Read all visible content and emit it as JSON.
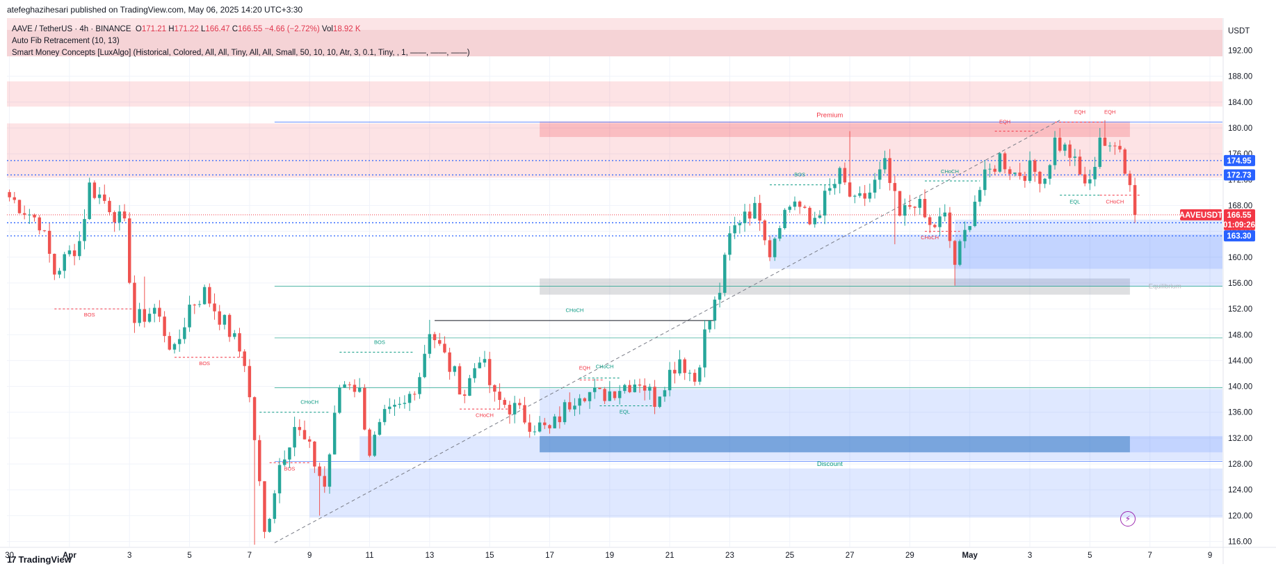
{
  "publisher_line": "atefeghazihesari published on TradingView.com, May 06, 2025 14:20 UTC+3:30",
  "legend": {
    "symbol": "AAVE / TetherUS · 4h · BINANCE",
    "o_label": "O",
    "o_value": "171.21",
    "h_label": "H",
    "h_value": "171.22",
    "l_label": "L",
    "l_value": "166.47",
    "c_label": "C",
    "c_value": "166.55",
    "change": "−4.66 (−2.72%)",
    "vol_label": "Vol",
    "vol_value": "18.92 K",
    "indicator1": "Auto Fib Retracement (10, 13)",
    "indicator2": "Smart Money Concepts [LuxAlgo] (Historical, Colored, All, All, Tiny, All, All, Small, 50, 10, 10, Atr, 3, 0.1, Tiny, , 1, ——, ——, ——)"
  },
  "footer": {
    "logo_glyph": "17",
    "logo_text": "TradingView"
  },
  "icons": {
    "bolt": "lightning-bolt-icon"
  },
  "colors": {
    "up": "#26a69a",
    "down": "#ef5350",
    "axis_text": "#131722",
    "blue_tag": "#2962ff",
    "red_tag": "#f23645"
  },
  "chart_data": {
    "type": "candlestick",
    "symbol": "AAVEUSDT",
    "currency": "USDT",
    "y_ticks": [
      116,
      120,
      124,
      128,
      132,
      136,
      140,
      144,
      148,
      152,
      156,
      160,
      164,
      168,
      172,
      176,
      180,
      184,
      188,
      192
    ],
    "y_tick_labels": [
      "116.00",
      "120.00",
      "124.00",
      "128.00",
      "132.00",
      "136.00",
      "140.00",
      "144.00",
      "148.00",
      "152.00",
      "156.00",
      "160.00",
      "164.00",
      "168.00",
      "172.00",
      "176.00",
      "180.00",
      "184.00",
      "188.00",
      "192.00"
    ],
    "ylim": [
      115.2,
      197.0
    ],
    "x_tick_labels": [
      {
        "t": 0,
        "label": "30"
      },
      {
        "t": 12,
        "label": "Apr"
      },
      {
        "t": 24,
        "label": "3"
      },
      {
        "t": 36,
        "label": "5"
      },
      {
        "t": 48,
        "label": "7"
      },
      {
        "t": 60,
        "label": "9"
      },
      {
        "t": 72,
        "label": "11"
      },
      {
        "t": 84,
        "label": "13"
      },
      {
        "t": 96,
        "label": "15"
      },
      {
        "t": 108,
        "label": "17"
      },
      {
        "t": 120,
        "label": "19"
      },
      {
        "t": 132,
        "label": "21"
      },
      {
        "t": 144,
        "label": "23"
      },
      {
        "t": 156,
        "label": "25"
      },
      {
        "t": 168,
        "label": "27"
      },
      {
        "t": 180,
        "label": "29"
      },
      {
        "t": 192,
        "label": "May"
      },
      {
        "t": 204,
        "label": "3"
      },
      {
        "t": 216,
        "label": "5"
      },
      {
        "t": 228,
        "label": "7"
      },
      {
        "t": 240,
        "label": "9"
      }
    ],
    "xlim": [
      -0.5,
      242.5
    ],
    "price_tags": [
      {
        "value": 174.95,
        "label": "174.95",
        "color": "#2962ff"
      },
      {
        "value": 172.73,
        "label": "172.73",
        "color": "#2962ff"
      },
      {
        "value": 165.32,
        "label": "165.32",
        "color": "#2962ff"
      },
      {
        "value": 163.3,
        "label": "163.30",
        "color": "#2962ff"
      }
    ],
    "last_price": {
      "value": 166.55,
      "label": "166.55",
      "symbol_label": "AAVEUSDT",
      "countdown": "01:09:26",
      "color": "#f23645"
    },
    "fib_lines": [
      180.9,
      155.5,
      147.5,
      139.8,
      128.4
    ],
    "fib_labels": [
      {
        "t": 164,
        "y": 182.0,
        "text": "Premium",
        "color": "#f23645"
      },
      {
        "t": 231,
        "y": 155.5,
        "text": "Equilibrium",
        "color": "#b2b5be"
      },
      {
        "t": 164,
        "y": 128.0,
        "text": "Discount",
        "color": "#089981"
      }
    ],
    "zones": [
      {
        "t0": -0.5,
        "t1": 242.5,
        "y0": 183.3,
        "y1": 187.2,
        "kind": "supply"
      },
      {
        "t0": -0.5,
        "t1": 242.5,
        "y0": 172.3,
        "y1": 180.7,
        "kind": "supply"
      },
      {
        "t0": 106,
        "t1": 224,
        "y0": 178.6,
        "y1": 181.0,
        "kind": "supply-strong"
      },
      {
        "t0": 106,
        "t1": 224,
        "y0": 154.2,
        "y1": 156.7,
        "kind": "equilibrium"
      },
      {
        "t0": 152,
        "t1": 242.5,
        "y0": 158.2,
        "y1": 163.5,
        "kind": "demand"
      },
      {
        "t0": 189,
        "t1": 242.5,
        "y0": 155.5,
        "y1": 165.8,
        "kind": "demand"
      },
      {
        "t0": 106,
        "t1": 242.5,
        "y0": 129.8,
        "y1": 139.6,
        "kind": "demand"
      },
      {
        "t0": 106,
        "t1": 224,
        "y0": 129.8,
        "y1": 132.3,
        "kind": "demand-strong"
      },
      {
        "t0": 70,
        "t1": 242.5,
        "y0": 128.5,
        "y1": 132.3,
        "kind": "demand"
      },
      {
        "t0": 60,
        "t1": 242.5,
        "y0": 119.7,
        "y1": 127.3,
        "kind": "demand"
      }
    ],
    "trend_line": {
      "t0": 53,
      "y0": 115.8,
      "t1": 210,
      "y1": 181.2
    },
    "structure_lines": [
      {
        "t0": 9,
        "t1": 25,
        "y": 152.0,
        "color": "#f23645",
        "dashed": true
      },
      {
        "t0": 33,
        "t1": 47,
        "y": 144.5,
        "color": "#f23645",
        "dashed": true
      },
      {
        "t0": 50,
        "t1": 64,
        "y": 136.0,
        "color": "#089981",
        "dashed": true
      },
      {
        "t0": 52,
        "t1": 60,
        "y": 128.2,
        "color": "#f23645",
        "dashed": true
      },
      {
        "t0": 66,
        "t1": 81,
        "y": 145.3,
        "color": "#089981",
        "dashed": true
      },
      {
        "t0": 85,
        "t1": 141,
        "y": 150.2,
        "color": "#131722",
        "dashed": false
      },
      {
        "t0": 90,
        "t1": 100,
        "y": 136.5,
        "color": "#f23645",
        "dashed": true
      },
      {
        "t0": 114,
        "t1": 122,
        "y": 141.3,
        "color": "#089981",
        "dashed": true
      },
      {
        "t0": 114,
        "t1": 119,
        "y": 141.0,
        "color": "#f23645",
        "dashed": true
      },
      {
        "t0": 118,
        "t1": 129,
        "y": 137.0,
        "color": "#089981",
        "dashed": true
      },
      {
        "t0": 152,
        "t1": 165,
        "y": 171.2,
        "color": "#089981",
        "dashed": true
      },
      {
        "t0": 183,
        "t1": 194,
        "y": 171.8,
        "color": "#089981",
        "dashed": true
      },
      {
        "t0": 183,
        "t1": 190,
        "y": 164.0,
        "color": "#f23645",
        "dashed": true
      },
      {
        "t0": 197,
        "t1": 205,
        "y": 179.5,
        "color": "#f23645",
        "dashed": true
      },
      {
        "t0": 209,
        "t1": 219,
        "y": 180.9,
        "color": "#f23645",
        "dashed": true
      },
      {
        "t0": 210,
        "t1": 218,
        "y": 169.6,
        "color": "#089981",
        "dashed": true
      },
      {
        "t0": 218,
        "t1": 226,
        "y": 169.6,
        "color": "#f23645",
        "dashed": true
      }
    ],
    "structure_labels": [
      {
        "t": 16,
        "y": 150.8,
        "text": "BOS",
        "color": "#f23645"
      },
      {
        "t": 39,
        "y": 143.3,
        "text": "BOS",
        "color": "#f23645"
      },
      {
        "t": 60,
        "y": 137.3,
        "text": "CHoCH",
        "color": "#089981"
      },
      {
        "t": 56,
        "y": 127.0,
        "text": "BOS",
        "color": "#f23645"
      },
      {
        "t": 74,
        "y": 146.6,
        "text": "BOS",
        "color": "#089981"
      },
      {
        "t": 113,
        "y": 151.5,
        "text": "CHoCH",
        "color": "#089981",
        "big": true
      },
      {
        "t": 95,
        "y": 135.3,
        "text": "CHoCH",
        "color": "#f23645"
      },
      {
        "t": 115,
        "y": 142.6,
        "text": "EQH",
        "color": "#f23645"
      },
      {
        "t": 119,
        "y": 142.8,
        "text": "CHoCH",
        "color": "#089981"
      },
      {
        "t": 123,
        "y": 135.8,
        "text": "EQL",
        "color": "#089981"
      },
      {
        "t": 158,
        "y": 172.5,
        "text": "BOS",
        "color": "#089981"
      },
      {
        "t": 188,
        "y": 173.0,
        "text": "CHoCH",
        "color": "#089981"
      },
      {
        "t": 184,
        "y": 162.8,
        "text": "CHoCH",
        "color": "#f23645"
      },
      {
        "t": 199,
        "y": 180.7,
        "text": "EQH",
        "color": "#f23645"
      },
      {
        "t": 214,
        "y": 182.2,
        "text": "EQH",
        "color": "#f23645"
      },
      {
        "t": 220,
        "y": 182.2,
        "text": "EQH",
        "color": "#f23645"
      },
      {
        "t": 213,
        "y": 168.3,
        "text": "EQL",
        "color": "#089981"
      },
      {
        "t": 221,
        "y": 168.3,
        "text": "CHoCH",
        "color": "#f23645"
      }
    ],
    "anchors": [
      {
        "t": 0,
        "y": 169.3
      },
      {
        "t": 6,
        "y": 165.5
      },
      {
        "t": 9,
        "y": 157.6
      },
      {
        "t": 14,
        "y": 162.5
      },
      {
        "t": 16,
        "y": 171.0
      },
      {
        "t": 20,
        "y": 168.0
      },
      {
        "t": 23,
        "y": 164.5
      },
      {
        "t": 25,
        "y": 150.0
      },
      {
        "t": 29,
        "y": 152.0
      },
      {
        "t": 33,
        "y": 145.0
      },
      {
        "t": 36,
        "y": 152.5
      },
      {
        "t": 39,
        "y": 154.5
      },
      {
        "t": 44,
        "y": 148.5
      },
      {
        "t": 47,
        "y": 144.0
      },
      {
        "t": 49,
        "y": 132.0
      },
      {
        "t": 51,
        "y": 117.0
      },
      {
        "t": 54,
        "y": 128.0
      },
      {
        "t": 57,
        "y": 134.0
      },
      {
        "t": 60,
        "y": 130.0
      },
      {
        "t": 63,
        "y": 124.5
      },
      {
        "t": 66,
        "y": 140.0
      },
      {
        "t": 68,
        "y": 141.0
      },
      {
        "t": 70,
        "y": 139.0
      },
      {
        "t": 72,
        "y": 130.0
      },
      {
        "t": 75,
        "y": 135.0
      },
      {
        "t": 79,
        "y": 137.0
      },
      {
        "t": 82,
        "y": 142.0
      },
      {
        "t": 84,
        "y": 149.0
      },
      {
        "t": 88,
        "y": 143.0
      },
      {
        "t": 91,
        "y": 139.0
      },
      {
        "t": 94,
        "y": 145.0
      },
      {
        "t": 97,
        "y": 138.0
      },
      {
        "t": 101,
        "y": 136.5
      },
      {
        "t": 104,
        "y": 134.5
      },
      {
        "t": 108,
        "y": 133.0
      },
      {
        "t": 111,
        "y": 136.5
      },
      {
        "t": 114,
        "y": 139.5
      },
      {
        "t": 118,
        "y": 138.5
      },
      {
        "t": 122,
        "y": 140.0
      },
      {
        "t": 126,
        "y": 141.0
      },
      {
        "t": 129,
        "y": 138.0
      },
      {
        "t": 131,
        "y": 141.0
      },
      {
        "t": 134,
        "y": 144.5
      },
      {
        "t": 137,
        "y": 141.0
      },
      {
        "t": 139,
        "y": 148.0
      },
      {
        "t": 142,
        "y": 155.0
      },
      {
        "t": 144,
        "y": 163.0
      },
      {
        "t": 147,
        "y": 167.5
      },
      {
        "t": 150,
        "y": 167.0
      },
      {
        "t": 152,
        "y": 161.0
      },
      {
        "t": 154,
        "y": 166.0
      },
      {
        "t": 157,
        "y": 169.0
      },
      {
        "t": 160,
        "y": 165.0
      },
      {
        "t": 163,
        "y": 169.0
      },
      {
        "t": 166,
        "y": 172.5
      },
      {
        "t": 169,
        "y": 168.0
      },
      {
        "t": 172,
        "y": 170.0
      },
      {
        "t": 175,
        "y": 174.0
      },
      {
        "t": 178,
        "y": 166.0
      },
      {
        "t": 181,
        "y": 169.0
      },
      {
        "t": 184,
        "y": 164.5
      },
      {
        "t": 187,
        "y": 166.0
      },
      {
        "t": 189,
        "y": 159.0
      },
      {
        "t": 191,
        "y": 163.5
      },
      {
        "t": 193,
        "y": 169.0
      },
      {
        "t": 195,
        "y": 172.0
      },
      {
        "t": 198,
        "y": 175.5
      },
      {
        "t": 201,
        "y": 173.0
      },
      {
        "t": 204,
        "y": 173.5
      },
      {
        "t": 207,
        "y": 172.5
      },
      {
        "t": 209,
        "y": 178.0
      },
      {
        "t": 212,
        "y": 176.0
      },
      {
        "t": 214,
        "y": 172.5
      },
      {
        "t": 216,
        "y": 171.0
      },
      {
        "t": 218,
        "y": 179.0
      },
      {
        "t": 220,
        "y": 176.0
      },
      {
        "t": 222,
        "y": 178.0
      },
      {
        "t": 223,
        "y": 174.0
      },
      {
        "t": 224,
        "y": 171.2
      },
      {
        "t": 225,
        "y": 166.55
      }
    ],
    "wicks": [
      {
        "t": 49,
        "low": 115.5
      },
      {
        "t": 27,
        "high": 157.0
      },
      {
        "t": 16,
        "high": 172.3
      },
      {
        "t": 62,
        "low": 120.0
      },
      {
        "t": 168,
        "high": 179.5
      },
      {
        "t": 189,
        "low": 155.6
      },
      {
        "t": 177,
        "low": 162.0
      },
      {
        "t": 84,
        "high": 150.3
      },
      {
        "t": 219,
        "high": 181.2
      }
    ]
  }
}
